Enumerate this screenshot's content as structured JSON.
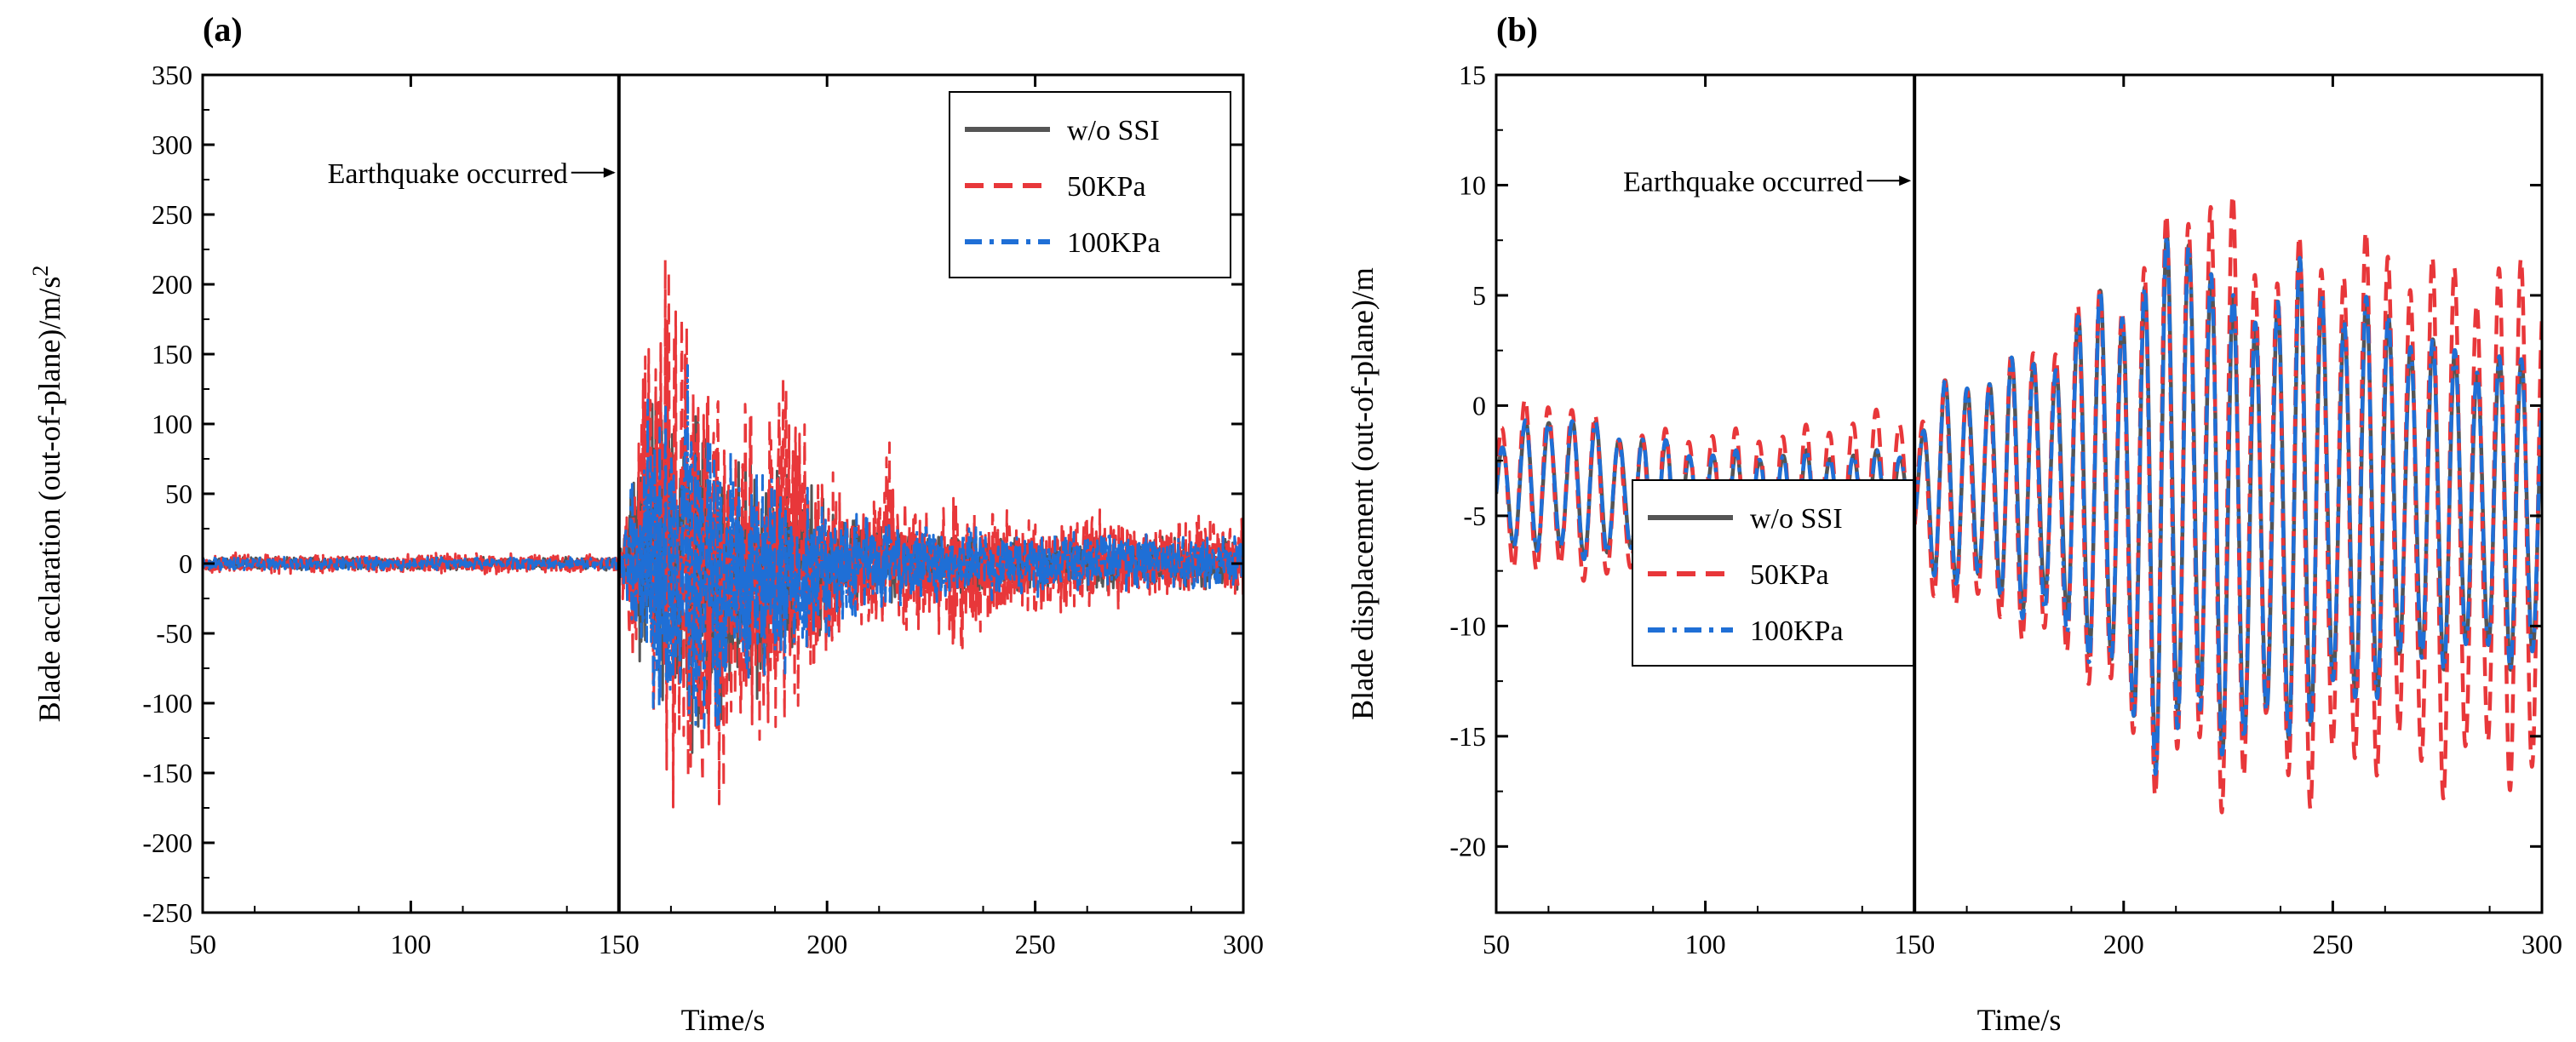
{
  "colors": {
    "w/o SSI": "#555555",
    "50KPa": "#e8373a",
    "100KPa": "#1f6fd6"
  },
  "chart_data": [
    {
      "panel": "(a)",
      "type": "line",
      "xlabel": "Time/s",
      "ylabel": "Blade acclaration (out-of-plane)/m/s",
      "ylabel_sup": "2",
      "xlim": [
        50,
        300
      ],
      "ylim": [
        -250,
        350
      ],
      "xticks": [
        50,
        100,
        150,
        200,
        250,
        300
      ],
      "yticks": [
        -250,
        -200,
        -150,
        -100,
        -50,
        0,
        50,
        100,
        150,
        200,
        250,
        300,
        350
      ],
      "grid": false,
      "legend": "top-right",
      "legend_entries": [
        "w/o SSI",
        "50KPa",
        "100KPa"
      ],
      "annotation": {
        "text": "Earthquake occurred",
        "x": 150
      },
      "series": [
        {
          "name": "w/o SSI",
          "style": "solid",
          "envelope": [
            [
              50,
              -5,
              5
            ],
            [
              150,
              -5,
              5
            ],
            [
              152,
              -40,
              40
            ],
            [
              155,
              -90,
              110
            ],
            [
              160,
              -120,
              140
            ],
            [
              165,
              -140,
              150
            ],
            [
              170,
              -150,
              130
            ],
            [
              175,
              -130,
              100
            ],
            [
              180,
              -110,
              90
            ],
            [
              185,
              -100,
              80
            ],
            [
              190,
              -80,
              70
            ],
            [
              195,
              -60,
              60
            ],
            [
              200,
              -55,
              55
            ],
            [
              205,
              -40,
              40
            ],
            [
              210,
              -30,
              30
            ],
            [
              230,
              -25,
              25
            ],
            [
              250,
              -20,
              20
            ],
            [
              270,
              -20,
              20
            ],
            [
              300,
              -20,
              20
            ]
          ]
        },
        {
          "name": "50KPa",
          "style": "dashed",
          "envelope": [
            [
              50,
              -8,
              8
            ],
            [
              150,
              -8,
              8
            ],
            [
              152,
              -50,
              50
            ],
            [
              155,
              -110,
              150
            ],
            [
              160,
              -170,
              230
            ],
            [
              165,
              -200,
              260
            ],
            [
              170,
              -200,
              180
            ],
            [
              175,
              -190,
              140
            ],
            [
              180,
              -160,
              130
            ],
            [
              185,
              -140,
              120
            ],
            [
              190,
              -150,
              190
            ],
            [
              195,
              -120,
              120
            ],
            [
              200,
              -100,
              90
            ],
            [
              205,
              -60,
              60
            ],
            [
              210,
              -50,
              50
            ],
            [
              215,
              -50,
              90
            ],
            [
              220,
              -60,
              50
            ],
            [
              230,
              -70,
              50
            ],
            [
              240,
              -50,
              45
            ],
            [
              250,
              -45,
              40
            ],
            [
              260,
              -40,
              45
            ],
            [
              270,
              -35,
              40
            ],
            [
              280,
              -30,
              35
            ],
            [
              300,
              -30,
              35
            ]
          ]
        },
        {
          "name": "100KPa",
          "style": "dashdot",
          "envelope": [
            [
              50,
              -5,
              5
            ],
            [
              150,
              -5,
              5
            ],
            [
              152,
              -40,
              40
            ],
            [
              155,
              -100,
              110
            ],
            [
              160,
              -140,
              140
            ],
            [
              165,
              -150,
              155
            ],
            [
              170,
              -145,
              130
            ],
            [
              175,
              -130,
              100
            ],
            [
              180,
              -110,
              90
            ],
            [
              185,
              -100,
              80
            ],
            [
              190,
              -80,
              70
            ],
            [
              195,
              -65,
              60
            ],
            [
              200,
              -60,
              55
            ],
            [
              205,
              -45,
              40
            ],
            [
              210,
              -35,
              35
            ],
            [
              230,
              -30,
              30
            ],
            [
              250,
              -25,
              25
            ],
            [
              270,
              -20,
              25
            ],
            [
              300,
              -20,
              20
            ]
          ]
        }
      ]
    },
    {
      "panel": "(b)",
      "type": "line",
      "xlabel": "Time/s",
      "ylabel": "Blade displacement (out-of-plane)/m",
      "xlim": [
        50,
        300
      ],
      "ylim": [
        -23,
        15
      ],
      "xticks": [
        50,
        100,
        150,
        200,
        250,
        300
      ],
      "yticks": [
        -20,
        -15,
        -10,
        -5,
        0,
        5,
        10,
        15
      ],
      "grid": false,
      "legend": "bottom-left",
      "legend_entries": [
        "w/o SSI",
        "50KPa",
        "100KPa"
      ],
      "annotation": {
        "text": "Earthquake occurred",
        "x": 150
      },
      "series": [
        {
          "name": "w/o SSI",
          "style": "solid",
          "envelope": [
            [
              50,
              -6,
              -2
            ],
            [
              60,
              -7,
              0
            ],
            [
              80,
              -7,
              -1
            ],
            [
              100,
              -7,
              -2
            ],
            [
              120,
              -7,
              -2
            ],
            [
              150,
              -6,
              -2
            ],
            [
              155,
              -8,
              1
            ],
            [
              170,
              -9,
              2
            ],
            [
              185,
              -10,
              3
            ],
            [
              195,
              -12,
              6
            ],
            [
              205,
              -17,
              6
            ],
            [
              215,
              -15,
              10
            ],
            [
              225,
              -16,
              5
            ],
            [
              235,
              -16,
              6
            ],
            [
              245,
              -15,
              7
            ],
            [
              255,
              -14,
              5
            ],
            [
              265,
              -13,
              5
            ],
            [
              275,
              -12,
              3
            ],
            [
              285,
              -12,
              3
            ],
            [
              300,
              -12,
              2
            ]
          ]
        },
        {
          "name": "50KPa",
          "style": "dashed",
          "envelope": [
            [
              50,
              -7,
              -1
            ],
            [
              60,
              -8,
              1
            ],
            [
              80,
              -8,
              -1
            ],
            [
              100,
              -8,
              -1
            ],
            [
              120,
              -8,
              -1
            ],
            [
              145,
              -7,
              0
            ],
            [
              150,
              -7,
              -1
            ],
            [
              155,
              -9,
              1
            ],
            [
              170,
              -10,
              2
            ],
            [
              185,
              -12,
              4
            ],
            [
              195,
              -13,
              6
            ],
            [
              205,
              -18,
              7
            ],
            [
              215,
              -17,
              11
            ],
            [
              225,
              -19,
              10
            ],
            [
              235,
              -16,
              7
            ],
            [
              245,
              -19,
              8
            ],
            [
              255,
              -17,
              8
            ],
            [
              265,
              -17,
              8
            ],
            [
              275,
              -18,
              7
            ],
            [
              285,
              -17,
              7
            ],
            [
              300,
              -18,
              7
            ]
          ]
        },
        {
          "name": "100KPa",
          "style": "dashdot",
          "envelope": [
            [
              50,
              -6,
              -2
            ],
            [
              60,
              -7,
              0
            ],
            [
              80,
              -7,
              -1
            ],
            [
              100,
              -7,
              -2
            ],
            [
              120,
              -7,
              -2
            ],
            [
              150,
              -6,
              -2
            ],
            [
              155,
              -8,
              1
            ],
            [
              170,
              -9,
              2
            ],
            [
              185,
              -11,
              3
            ],
            [
              195,
              -12,
              6
            ],
            [
              205,
              -17,
              6
            ],
            [
              215,
              -16,
              10
            ],
            [
              225,
              -16,
              5
            ],
            [
              235,
              -16,
              6
            ],
            [
              245,
              -15,
              7
            ],
            [
              255,
              -14,
              5
            ],
            [
              265,
              -13,
              5
            ],
            [
              275,
              -12,
              3
            ],
            [
              285,
              -12,
              3
            ],
            [
              300,
              -12,
              2
            ]
          ]
        }
      ]
    }
  ]
}
